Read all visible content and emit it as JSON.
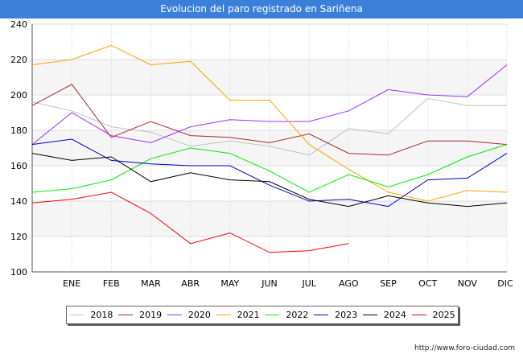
{
  "header": {
    "title": "Evolucion del paro registrado en Sariñena"
  },
  "footer": {
    "source": "http://www.foro-ciudad.com"
  },
  "chart_data": {
    "type": "line",
    "title": "Evolucion del paro registrado en Sariñena",
    "xlabel": "",
    "ylabel": "",
    "categories": [
      "",
      "ENE",
      "FEB",
      "MAR",
      "ABR",
      "MAY",
      "JUN",
      "JUL",
      "AGO",
      "SEP",
      "OCT",
      "NOV",
      "DIC"
    ],
    "ylim": [
      100,
      240
    ],
    "yticks": [
      100,
      120,
      140,
      160,
      180,
      200,
      220,
      240
    ],
    "grid": true,
    "legend_position": "bottom",
    "series": [
      {
        "name": "2018",
        "color": "#c0c0c0",
        "values": [
          196,
          191,
          182,
          179,
          171,
          174,
          171,
          166,
          181,
          178,
          198,
          194,
          194
        ]
      },
      {
        "name": "2019",
        "color": "#a52a2a",
        "values": [
          194,
          206,
          176,
          185,
          177,
          176,
          173,
          178,
          167,
          166,
          174,
          174,
          172
        ]
      },
      {
        "name": "2020",
        "color": "#9b30ff",
        "values": [
          172,
          190,
          177,
          173,
          182,
          186,
          185,
          185,
          191,
          203,
          200,
          199,
          217
        ]
      },
      {
        "name": "2021",
        "color": "#ffa500",
        "values": [
          217,
          220,
          228,
          217,
          219,
          197,
          197,
          172,
          158,
          145,
          140,
          146,
          145
        ]
      },
      {
        "name": "2022",
        "color": "#00ee00",
        "values": [
          145,
          147,
          152,
          164,
          170,
          167,
          157,
          145,
          155,
          148,
          155,
          165,
          172
        ]
      },
      {
        "name": "2023",
        "color": "#0000cc",
        "values": [
          172,
          175,
          163,
          161,
          160,
          160,
          149,
          140,
          141,
          137,
          152,
          153,
          167
        ]
      },
      {
        "name": "2024",
        "color": "#000000",
        "values": [
          167,
          163,
          165,
          151,
          156,
          152,
          151,
          141,
          137,
          143,
          139,
          137,
          139
        ]
      },
      {
        "name": "2025",
        "color": "#ff0000",
        "values": [
          139,
          141,
          145,
          133,
          116,
          122,
          111,
          112,
          116,
          null,
          null,
          null,
          null
        ]
      }
    ]
  }
}
